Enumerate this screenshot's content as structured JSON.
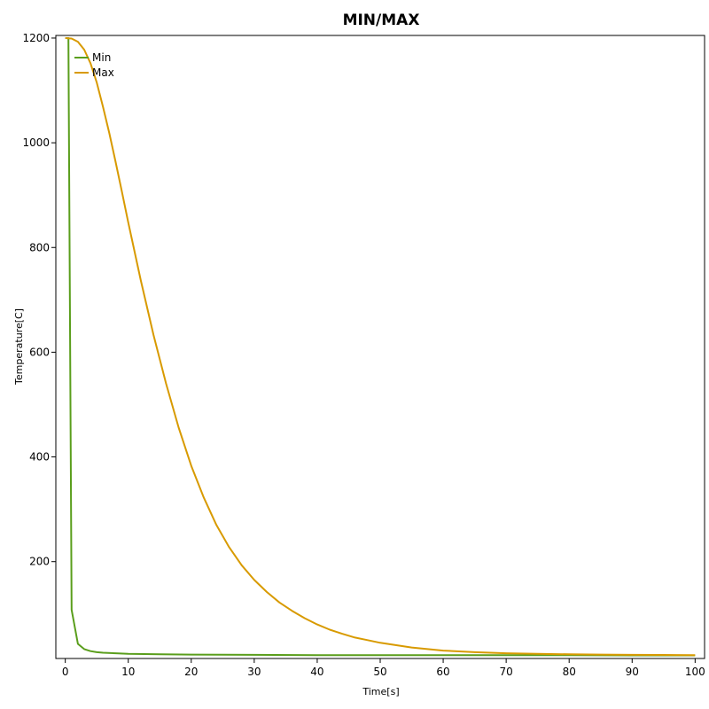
{
  "chart_data": {
    "type": "line",
    "title": "MIN/MAX",
    "xlabel": "Time[s]",
    "ylabel": "Temperature[C]",
    "xlim": [
      -1.5,
      101.5
    ],
    "ylim": [
      15,
      1205
    ],
    "x_ticks": [
      0,
      10,
      20,
      30,
      40,
      50,
      60,
      70,
      80,
      90,
      100
    ],
    "y_ticks": [
      200,
      400,
      600,
      800,
      1000,
      1200
    ],
    "grid": false,
    "legend_position": "top-left",
    "series": [
      {
        "name": "Min",
        "color": "#5a9e1c",
        "x": [
          0,
          0.5,
          1,
          2,
          3,
          4,
          5,
          6,
          8,
          10,
          15,
          20,
          30,
          40,
          50,
          60,
          70,
          80,
          90,
          100
        ],
        "y": [
          1200,
          1200,
          108,
          43,
          33,
          29,
          27,
          26,
          25,
          24,
          23,
          22.5,
          22,
          21.5,
          21.5,
          21.5,
          21.5,
          21.5,
          21,
          21
        ]
      },
      {
        "name": "Max",
        "color": "#d89a00",
        "x": [
          0,
          1,
          2,
          3,
          4,
          5,
          6,
          7,
          8,
          9,
          10,
          12,
          14,
          16,
          18,
          20,
          22,
          24,
          26,
          28,
          30,
          32,
          34,
          36,
          38,
          40,
          42,
          44,
          46,
          48,
          50,
          55,
          60,
          65,
          70,
          75,
          80,
          85,
          90,
          95,
          100
        ],
        "y": [
          1200,
          1199,
          1193,
          1178,
          1152,
          1115,
          1068,
          1018,
          963,
          906,
          848,
          737,
          633,
          540,
          456,
          383,
          322,
          270,
          228,
          193,
          165,
          142,
          122,
          106,
          92,
          80,
          70,
          62,
          55,
          50,
          45,
          36,
          30,
          27,
          25,
          24,
          23,
          22.5,
          22,
          21.8,
          21.5
        ]
      }
    ]
  }
}
